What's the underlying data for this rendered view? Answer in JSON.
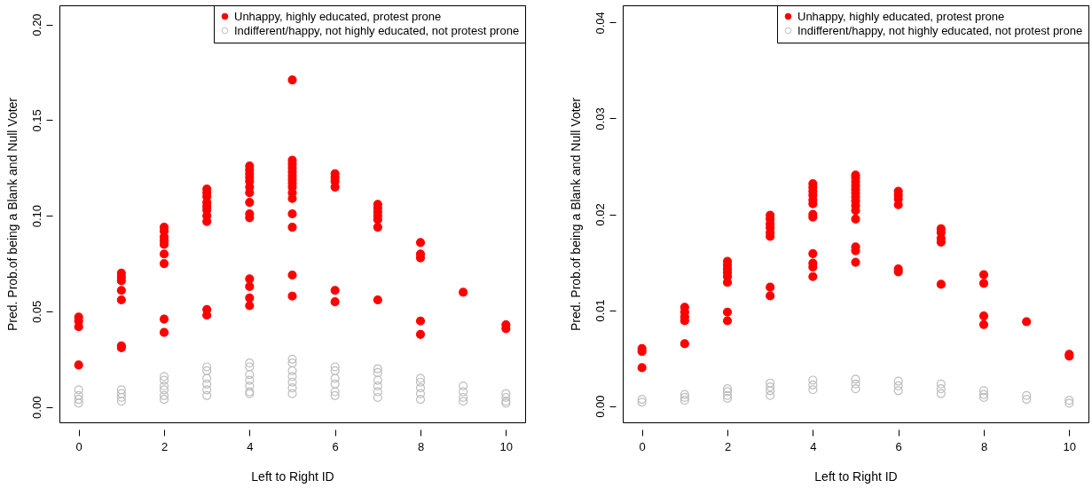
{
  "chart_data": [
    {
      "type": "scatter",
      "xlabel": "Left to Right ID",
      "ylabel": "Pred. Prob.of being a Blank and Null Voter",
      "xlim": [
        -0.45,
        10.45
      ],
      "ylim": [
        -0.008,
        0.21
      ],
      "xticks": [
        0,
        2,
        4,
        6,
        8,
        10
      ],
      "yticks": [
        {
          "value": 0,
          "label": "0.00"
        },
        0.05,
        {
          "value": 0.1,
          "label": "0.10"
        },
        0.15,
        {
          "value": 0.2,
          "label": "0.20"
        }
      ],
      "grid": false,
      "legend": "top right",
      "series": [
        {
          "name": "Unhappy, highly educated, protest prone",
          "color": "#ff0000",
          "marker": "circle",
          "x": [
            0,
            0,
            0,
            0,
            1,
            1,
            1,
            1,
            1,
            1,
            1,
            2,
            2,
            2,
            2,
            2,
            2,
            2,
            2,
            2,
            3,
            3,
            3,
            3,
            3,
            3,
            3,
            3,
            3,
            3,
            4,
            4,
            4,
            4,
            4,
            4,
            4,
            4,
            4,
            4,
            4,
            4,
            4,
            4,
            5,
            5,
            5,
            5,
            5,
            5,
            5,
            5,
            5,
            5,
            5,
            5,
            5,
            5,
            5,
            6,
            6,
            6,
            6,
            6,
            6,
            7,
            7,
            7,
            7,
            7,
            7,
            7,
            8,
            8,
            8,
            8,
            8,
            9,
            10,
            10
          ],
          "values": [
            0.047,
            0.045,
            0.042,
            0.022,
            0.07,
            0.068,
            0.066,
            0.061,
            0.056,
            0.032,
            0.031,
            0.094,
            0.092,
            0.089,
            0.087,
            0.085,
            0.08,
            0.075,
            0.046,
            0.039,
            0.114,
            0.112,
            0.11,
            0.107,
            0.105,
            0.103,
            0.1,
            0.097,
            0.051,
            0.048,
            0.126,
            0.124,
            0.122,
            0.12,
            0.118,
            0.115,
            0.112,
            0.107,
            0.101,
            0.099,
            0.067,
            0.063,
            0.057,
            0.053,
            0.171,
            0.129,
            0.127,
            0.125,
            0.123,
            0.121,
            0.119,
            0.117,
            0.115,
            0.112,
            0.109,
            0.101,
            0.094,
            0.069,
            0.058,
            0.122,
            0.12,
            0.118,
            0.115,
            0.061,
            0.055,
            0.106,
            0.104,
            0.102,
            0.1,
            0.098,
            0.094,
            0.056,
            0.086,
            0.08,
            0.078,
            0.045,
            0.038,
            0.06,
            0.043,
            0.041
          ]
        },
        {
          "name": "Indifferent/happy, not highly educated, not protest prone",
          "color": "#bebebe",
          "marker": "circle-open",
          "x": [
            0,
            0,
            0,
            0,
            1,
            1,
            1,
            1,
            2,
            2,
            2,
            2,
            2,
            2,
            3,
            3,
            3,
            3,
            3,
            3,
            4,
            4,
            4,
            4,
            4,
            4,
            4,
            5,
            5,
            5,
            5,
            5,
            5,
            5,
            6,
            6,
            6,
            6,
            6,
            6,
            7,
            7,
            7,
            7,
            7,
            7,
            8,
            8,
            8,
            8,
            8,
            9,
            9,
            9,
            9,
            10,
            10,
            10,
            10
          ],
          "values": [
            0.009,
            0.006,
            0.004,
            0.002,
            0.009,
            0.007,
            0.005,
            0.003,
            0.016,
            0.014,
            0.011,
            0.009,
            0.006,
            0.004,
            0.021,
            0.019,
            0.015,
            0.012,
            0.009,
            0.006,
            0.023,
            0.021,
            0.017,
            0.014,
            0.011,
            0.008,
            0.007,
            0.025,
            0.023,
            0.019,
            0.016,
            0.013,
            0.01,
            0.007,
            0.021,
            0.019,
            0.015,
            0.012,
            0.008,
            0.006,
            0.02,
            0.018,
            0.014,
            0.011,
            0.008,
            0.005,
            0.015,
            0.013,
            0.01,
            0.007,
            0.004,
            0.011,
            0.008,
            0.005,
            0.003,
            0.007,
            0.005,
            0.003,
            0.002
          ]
        }
      ]
    },
    {
      "type": "scatter",
      "xlabel": "Left to Right ID",
      "ylabel": "Pred. Prob.of being a Blank and Null Voter",
      "xlim": [
        -0.45,
        10.45
      ],
      "ylim": [
        -0.0017,
        0.0418
      ],
      "xticks": [
        0,
        2,
        4,
        6,
        8,
        10
      ],
      "yticks": [
        {
          "value": 0,
          "label": "0.00"
        },
        0.01,
        0.02,
        0.03,
        0.04
      ],
      "grid": false,
      "legend": "top right",
      "series": [
        {
          "name": "Unhappy, highly educated, protest prone",
          "color": "#ff0000",
          "marker": "circle",
          "x": [
            0,
            0,
            0,
            1,
            1,
            1,
            1,
            1,
            2,
            2,
            2,
            2,
            2,
            2,
            2,
            2,
            3,
            3,
            3,
            3,
            3,
            3,
            3,
            3,
            4,
            4,
            4,
            4,
            4,
            4,
            4,
            4,
            4,
            4,
            4,
            4,
            5,
            5,
            5,
            5,
            5,
            5,
            5,
            5,
            5,
            5,
            5,
            5,
            5,
            5,
            6,
            6,
            6,
            6,
            6,
            6,
            7,
            7,
            7,
            7,
            7,
            8,
            8,
            8,
            8,
            9,
            10,
            10
          ],
          "values": [
            0.006,
            0.0057,
            0.004,
            0.0103,
            0.0098,
            0.0093,
            0.0089,
            0.0065,
            0.0151,
            0.0147,
            0.0143,
            0.0139,
            0.0135,
            0.0129,
            0.0098,
            0.0089,
            0.0199,
            0.0195,
            0.019,
            0.0186,
            0.0181,
            0.0177,
            0.0124,
            0.0115,
            0.0232,
            0.0228,
            0.0224,
            0.022,
            0.0215,
            0.0211,
            0.02,
            0.0197,
            0.0159,
            0.0149,
            0.0145,
            0.0135,
            0.0241,
            0.0238,
            0.0234,
            0.023,
            0.0226,
            0.0222,
            0.0218,
            0.0214,
            0.0209,
            0.0204,
            0.0195,
            0.0166,
            0.0162,
            0.015,
            0.0224,
            0.022,
            0.0216,
            0.021,
            0.0143,
            0.014,
            0.0185,
            0.0181,
            0.0175,
            0.0171,
            0.0127,
            0.0137,
            0.0128,
            0.0094,
            0.0085,
            0.0088,
            0.0054,
            0.0052
          ]
        },
        {
          "name": "Indifferent/happy, not highly educated, not protest prone",
          "color": "#bebebe",
          "marker": "circle-open",
          "x": [
            0,
            0,
            1,
            1,
            1,
            2,
            2,
            2,
            2,
            3,
            3,
            3,
            3,
            4,
            4,
            4,
            5,
            5,
            5,
            6,
            6,
            6,
            7,
            7,
            7,
            8,
            8,
            8,
            9,
            9,
            10,
            10
          ],
          "values": [
            0.0007,
            0.0004,
            0.0012,
            0.0009,
            0.0006,
            0.0018,
            0.0015,
            0.0011,
            0.0008,
            0.0024,
            0.002,
            0.0016,
            0.0011,
            0.0027,
            0.0022,
            0.0017,
            0.0028,
            0.0023,
            0.0018,
            0.0026,
            0.0021,
            0.0016,
            0.0023,
            0.0018,
            0.0013,
            0.0016,
            0.0012,
            0.0009,
            0.0011,
            0.0007,
            0.0006,
            0.0003
          ]
        }
      ]
    }
  ]
}
